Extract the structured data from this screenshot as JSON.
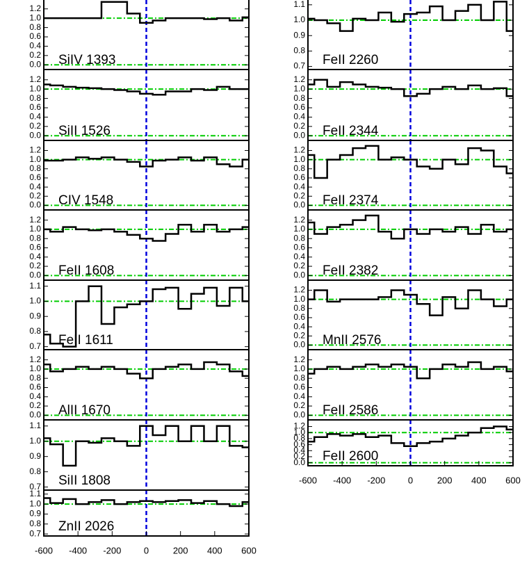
{
  "chart_data": [
    {
      "type": "step",
      "title": "SiIV 1393",
      "x": [
        -600,
        -525,
        -450,
        -375,
        -300,
        -225,
        -150,
        -75,
        0,
        75,
        150,
        225,
        300,
        375,
        450,
        525,
        600
      ],
      "values": [
        1.0,
        1.0,
        1.0,
        1.0,
        1.0,
        1.35,
        1.35,
        1.1,
        0.9,
        0.95,
        1.0,
        1.0,
        1.0,
        0.98,
        1.0,
        0.95,
        1.02
      ],
      "xlim": [
        -600,
        600
      ],
      "ylim": [
        -0.1,
        1.42
      ],
      "yticks": [
        {
          "value": 0,
          "label": "0.0"
        },
        {
          "value": 0.2,
          "label": "0.2"
        },
        {
          "value": 0.4,
          "label": "0.4"
        },
        {
          "value": 0.6,
          "label": "0.6"
        },
        {
          "value": 0.8,
          "label": "0.8"
        },
        {
          "value": 1,
          "label": "1.0"
        },
        {
          "value": 1.2,
          "label": "1.2"
        }
      ],
      "hlines": [
        0,
        1
      ],
      "vline": 0,
      "color": "#000000",
      "hline_color": "#00cc00",
      "vline_color": "#0000dd"
    },
    {
      "type": "step",
      "title": "SiII 1526",
      "x": [
        -600,
        -525,
        -450,
        -375,
        -300,
        -225,
        -150,
        -75,
        0,
        75,
        150,
        225,
        300,
        375,
        450,
        525,
        600
      ],
      "values": [
        1.1,
        1.08,
        1.05,
        1.03,
        1.02,
        1.0,
        0.98,
        0.95,
        0.9,
        0.88,
        0.95,
        0.95,
        1.0,
        0.98,
        1.05,
        1.0,
        1.0
      ],
      "xlim": [
        -600,
        600
      ],
      "ylim": [
        -0.1,
        1.42
      ],
      "yticks": [
        {
          "value": 0,
          "label": "0.0"
        },
        {
          "value": 0.2,
          "label": "0.2"
        },
        {
          "value": 0.4,
          "label": "0.4"
        },
        {
          "value": 0.6,
          "label": "0.6"
        },
        {
          "value": 0.8,
          "label": "0.8"
        },
        {
          "value": 1,
          "label": "1.0"
        },
        {
          "value": 1.2,
          "label": "1.2"
        }
      ],
      "hlines": [
        0,
        1
      ],
      "vline": 0,
      "color": "#000000",
      "hline_color": "#00cc00",
      "vline_color": "#0000dd"
    },
    {
      "type": "step",
      "title": "CIV 1548",
      "x": [
        -600,
        -525,
        -450,
        -375,
        -300,
        -225,
        -150,
        -75,
        0,
        75,
        150,
        225,
        300,
        375,
        450,
        525,
        600
      ],
      "values": [
        0.98,
        0.98,
        1.0,
        1.05,
        1.02,
        1.05,
        1.0,
        0.95,
        0.85,
        0.98,
        1.0,
        1.05,
        0.98,
        1.05,
        0.9,
        0.85,
        1.0
      ],
      "xlim": [
        -600,
        600
      ],
      "ylim": [
        -0.1,
        1.42
      ],
      "yticks": [
        {
          "value": 0,
          "label": "0.0"
        },
        {
          "value": 0.2,
          "label": "0.2"
        },
        {
          "value": 0.4,
          "label": "0.4"
        },
        {
          "value": 0.6,
          "label": "0.6"
        },
        {
          "value": 0.8,
          "label": "0.8"
        },
        {
          "value": 1,
          "label": "1.0"
        },
        {
          "value": 1.2,
          "label": "1.2"
        }
      ],
      "hlines": [
        0,
        1
      ],
      "vline": 0,
      "color": "#000000",
      "hline_color": "#00cc00",
      "vline_color": "#0000dd"
    },
    {
      "type": "step",
      "title": "FeII 1608",
      "x": [
        -600,
        -525,
        -450,
        -375,
        -300,
        -225,
        -150,
        -75,
        0,
        75,
        150,
        225,
        300,
        375,
        450,
        525,
        600
      ],
      "values": [
        1.0,
        0.95,
        1.05,
        1.0,
        0.98,
        1.0,
        0.95,
        0.88,
        0.8,
        0.75,
        0.9,
        1.1,
        0.95,
        1.1,
        0.95,
        1.0,
        1.05
      ],
      "xlim": [
        -600,
        600
      ],
      "ylim": [
        -0.1,
        1.42
      ],
      "yticks": [
        {
          "value": 0,
          "label": "0.0"
        },
        {
          "value": 0.2,
          "label": "0.2"
        },
        {
          "value": 0.4,
          "label": "0.4"
        },
        {
          "value": 0.6,
          "label": "0.6"
        },
        {
          "value": 0.8,
          "label": "0.8"
        },
        {
          "value": 1,
          "label": "1.0"
        },
        {
          "value": 1.2,
          "label": "1.2"
        }
      ],
      "hlines": [
        0,
        1
      ],
      "vline": 0,
      "color": "#000000",
      "hline_color": "#00cc00",
      "vline_color": "#0000dd"
    },
    {
      "type": "step",
      "title": "FeII 1611",
      "x": [
        -600,
        -525,
        -450,
        -375,
        -300,
        -225,
        -150,
        -75,
        0,
        75,
        150,
        225,
        300,
        375,
        450,
        525,
        600
      ],
      "values": [
        0.78,
        0.72,
        0.7,
        1.0,
        1.1,
        0.85,
        0.96,
        0.98,
        1.0,
        1.08,
        1.09,
        0.95,
        1.05,
        1.09,
        0.97,
        1.09,
        1.0
      ],
      "xlim": [
        -600,
        600
      ],
      "ylim": [
        0.68,
        1.14
      ],
      "yticks": [
        {
          "value": 0.7,
          "label": "0.7"
        },
        {
          "value": 0.8,
          "label": "0.8"
        },
        {
          "value": 0.9,
          "label": "0.9"
        },
        {
          "value": 1,
          "label": "1.0"
        },
        {
          "value": 1.1,
          "label": "1.1"
        }
      ],
      "hlines": [
        1
      ],
      "vline": 0,
      "color": "#000000",
      "hline_color": "#00cc00",
      "vline_color": "#0000dd"
    },
    {
      "type": "step",
      "title": "AlII 1670",
      "x": [
        -600,
        -525,
        -450,
        -375,
        -300,
        -225,
        -150,
        -75,
        0,
        75,
        150,
        225,
        300,
        375,
        450,
        525,
        600
      ],
      "values": [
        1.1,
        0.95,
        1.0,
        1.05,
        1.0,
        1.05,
        1.0,
        0.9,
        0.8,
        1.0,
        1.05,
        1.1,
        1.0,
        1.15,
        1.1,
        0.95,
        0.85
      ],
      "xlim": [
        -600,
        600
      ],
      "ylim": [
        -0.1,
        1.42
      ],
      "yticks": [
        {
          "value": 0,
          "label": "0.0"
        },
        {
          "value": 0.2,
          "label": "0.2"
        },
        {
          "value": 0.4,
          "label": "0.4"
        },
        {
          "value": 0.6,
          "label": "0.6"
        },
        {
          "value": 0.8,
          "label": "0.8"
        },
        {
          "value": 1,
          "label": "1.0"
        },
        {
          "value": 1.2,
          "label": "1.2"
        }
      ],
      "hlines": [
        0,
        1
      ],
      "vline": 0,
      "color": "#000000",
      "hline_color": "#00cc00",
      "vline_color": "#0000dd"
    },
    {
      "type": "step",
      "title": "SiII 1808",
      "x": [
        -600,
        -525,
        -450,
        -375,
        -300,
        -225,
        -150,
        -75,
        0,
        75,
        150,
        225,
        300,
        375,
        450,
        525,
        600
      ],
      "values": [
        1.02,
        0.98,
        0.84,
        1.0,
        0.99,
        1.02,
        1.0,
        0.97,
        1.1,
        1.04,
        1.1,
        1.0,
        1.1,
        1.0,
        1.1,
        0.97,
        0.96
      ],
      "xlim": [
        -600,
        600
      ],
      "ylim": [
        0.68,
        1.14
      ],
      "yticks": [
        {
          "value": 0.7,
          "label": "0.7"
        },
        {
          "value": 0.8,
          "label": "0.8"
        },
        {
          "value": 0.9,
          "label": "0.9"
        },
        {
          "value": 1,
          "label": "1.0"
        },
        {
          "value": 1.1,
          "label": "1.1"
        }
      ],
      "hlines": [
        1
      ],
      "vline": 0,
      "color": "#000000",
      "hline_color": "#00cc00",
      "vline_color": "#0000dd"
    },
    {
      "type": "step",
      "title": "ZnII 2026",
      "x": [
        -600,
        -525,
        -450,
        -375,
        -300,
        -225,
        -150,
        -75,
        0,
        75,
        150,
        225,
        300,
        375,
        450,
        525,
        600
      ],
      "values": [
        1.06,
        1.01,
        1.05,
        1.0,
        1.02,
        1.04,
        1.0,
        1.02,
        1.03,
        1.02,
        1.03,
        1.04,
        1.01,
        1.03,
        1.0,
        0.98,
        1.02
      ],
      "xlim": [
        -600,
        600
      ],
      "xticks": [
        -600,
        -400,
        -200,
        0,
        200,
        400,
        600
      ],
      "ylim": [
        0.68,
        1.14
      ],
      "yticks": [
        {
          "value": 0.7,
          "label": "0.7"
        },
        {
          "value": 0.8,
          "label": "0.8"
        },
        {
          "value": 0.9,
          "label": "0.9"
        },
        {
          "value": 1,
          "label": "1.0"
        },
        {
          "value": 1.1,
          "label": "1.1"
        }
      ],
      "hlines": [
        1
      ],
      "vline": 0,
      "color": "#000000",
      "hline_color": "#00cc00",
      "vline_color": "#0000dd"
    },
    {
      "type": "step",
      "title": "FeII 2260",
      "x": [
        -600,
        -525,
        -450,
        -375,
        -300,
        -225,
        -150,
        -75,
        0,
        75,
        150,
        225,
        300,
        375,
        450,
        525,
        600
      ],
      "values": [
        1.01,
        1.0,
        0.98,
        0.93,
        1.01,
        1.0,
        1.05,
        0.99,
        1.04,
        1.05,
        1.09,
        1.0,
        1.06,
        1.1,
        1.0,
        1.12,
        0.93
      ],
      "xlim": [
        -600,
        600
      ],
      "ylim": [
        0.68,
        1.14
      ],
      "yticks": [
        {
          "value": 0.7,
          "label": "0.7"
        },
        {
          "value": 0.8,
          "label": "0.8"
        },
        {
          "value": 0.9,
          "label": "0.9"
        },
        {
          "value": 1,
          "label": "1.0"
        },
        {
          "value": 1.1,
          "label": "1.1"
        }
      ],
      "hlines": [
        1
      ],
      "vline": 0,
      "color": "#000000",
      "hline_color": "#00cc00",
      "vline_color": "#0000dd"
    },
    {
      "type": "step",
      "title": "FeII 2344",
      "x": [
        -600,
        -525,
        -450,
        -375,
        -300,
        -225,
        -150,
        -75,
        0,
        75,
        150,
        225,
        300,
        375,
        450,
        525,
        600
      ],
      "values": [
        1.1,
        1.2,
        1.05,
        1.15,
        1.1,
        1.05,
        1.03,
        1.0,
        0.85,
        0.9,
        1.0,
        1.05,
        1.0,
        1.08,
        1.0,
        1.02,
        0.85
      ],
      "xlim": [
        -600,
        600
      ],
      "ylim": [
        -0.1,
        1.42
      ],
      "yticks": [
        {
          "value": 0,
          "label": "0.0"
        },
        {
          "value": 0.2,
          "label": "0.2"
        },
        {
          "value": 0.4,
          "label": "0.4"
        },
        {
          "value": 0.6,
          "label": "0.6"
        },
        {
          "value": 0.8,
          "label": "0.8"
        },
        {
          "value": 1,
          "label": "1.0"
        },
        {
          "value": 1.2,
          "label": "1.2"
        }
      ],
      "hlines": [
        0,
        1
      ],
      "vline": 0,
      "color": "#000000",
      "hline_color": "#00cc00",
      "vline_color": "#0000dd"
    },
    {
      "type": "step",
      "title": "FeII 2374",
      "x": [
        -600,
        -525,
        -450,
        -375,
        -300,
        -225,
        -150,
        -75,
        0,
        75,
        150,
        225,
        300,
        375,
        450,
        525,
        600
      ],
      "values": [
        1.1,
        0.6,
        1.0,
        1.1,
        1.25,
        1.3,
        1.0,
        1.05,
        1.0,
        0.85,
        0.8,
        1.0,
        0.9,
        1.25,
        1.2,
        0.85,
        0.7
      ],
      "xlim": [
        -600,
        600
      ],
      "ylim": [
        -0.1,
        1.42
      ],
      "yticks": [
        {
          "value": 0,
          "label": "0.0"
        },
        {
          "value": 0.2,
          "label": "0.2"
        },
        {
          "value": 0.4,
          "label": "0.4"
        },
        {
          "value": 0.6,
          "label": "0.6"
        },
        {
          "value": 0.8,
          "label": "0.8"
        },
        {
          "value": 1,
          "label": "1.0"
        },
        {
          "value": 1.2,
          "label": "1.2"
        }
      ],
      "hlines": [
        0,
        1
      ],
      "vline": 0,
      "color": "#000000",
      "hline_color": "#00cc00",
      "vline_color": "#0000dd"
    },
    {
      "type": "step",
      "title": "FeII 2382",
      "x": [
        -600,
        -525,
        -450,
        -375,
        -300,
        -225,
        -150,
        -75,
        0,
        75,
        150,
        225,
        300,
        375,
        450,
        525,
        600
      ],
      "values": [
        1.15,
        0.9,
        1.05,
        1.1,
        1.2,
        1.3,
        0.95,
        0.8,
        1.0,
        0.9,
        1.0,
        0.95,
        1.05,
        0.9,
        1.1,
        0.95,
        1.0
      ],
      "xlim": [
        -600,
        600
      ],
      "ylim": [
        -0.1,
        1.42
      ],
      "yticks": [
        {
          "value": 0,
          "label": "0.0"
        },
        {
          "value": 0.2,
          "label": "0.2"
        },
        {
          "value": 0.4,
          "label": "0.4"
        },
        {
          "value": 0.6,
          "label": "0.6"
        },
        {
          "value": 0.8,
          "label": "0.8"
        },
        {
          "value": 1,
          "label": "1.0"
        },
        {
          "value": 1.2,
          "label": "1.2"
        }
      ],
      "hlines": [
        0,
        1
      ],
      "vline": 0,
      "color": "#000000",
      "hline_color": "#00cc00",
      "vline_color": "#0000dd"
    },
    {
      "type": "step",
      "title": "MnII 2576",
      "x": [
        -600,
        -525,
        -450,
        -375,
        -300,
        -225,
        -150,
        -75,
        0,
        75,
        150,
        225,
        300,
        375,
        450,
        525,
        600
      ],
      "values": [
        1.0,
        1.2,
        0.95,
        1.0,
        1.0,
        1.0,
        1.05,
        1.2,
        1.1,
        0.9,
        0.65,
        1.05,
        0.8,
        1.2,
        1.0,
        0.85,
        1.0
      ],
      "xlim": [
        -600,
        600
      ],
      "ylim": [
        -0.1,
        1.42
      ],
      "yticks": [
        {
          "value": 0,
          "label": "0.0"
        },
        {
          "value": 0.2,
          "label": "0.2"
        },
        {
          "value": 0.4,
          "label": "0.4"
        },
        {
          "value": 0.6,
          "label": "0.6"
        },
        {
          "value": 0.8,
          "label": "0.8"
        },
        {
          "value": 1,
          "label": "1.0"
        },
        {
          "value": 1.2,
          "label": "1.2"
        }
      ],
      "hlines": [
        0,
        1
      ],
      "vline": 0,
      "color": "#000000",
      "hline_color": "#00cc00",
      "vline_color": "#0000dd"
    },
    {
      "type": "step",
      "title": "FeII 2586",
      "x": [
        -600,
        -525,
        -450,
        -375,
        -300,
        -225,
        -150,
        -75,
        0,
        75,
        150,
        225,
        300,
        375,
        450,
        525,
        600
      ],
      "values": [
        0.9,
        1.0,
        1.05,
        1.0,
        1.05,
        1.1,
        1.05,
        1.1,
        1.05,
        0.8,
        1.0,
        1.1,
        1.05,
        1.15,
        1.0,
        1.05,
        0.95
      ],
      "xlim": [
        -600,
        600
      ],
      "ylim": [
        -0.1,
        1.42
      ],
      "yticks": [
        {
          "value": 0,
          "label": "0.0"
        },
        {
          "value": 0.2,
          "label": "0.2"
        },
        {
          "value": 0.4,
          "label": "0.4"
        },
        {
          "value": 0.6,
          "label": "0.6"
        },
        {
          "value": 0.8,
          "label": "0.8"
        },
        {
          "value": 1,
          "label": "1.0"
        },
        {
          "value": 1.2,
          "label": "1.2"
        }
      ],
      "hlines": [
        0,
        1
      ],
      "vline": 0,
      "color": "#000000",
      "hline_color": "#00cc00",
      "vline_color": "#0000dd"
    },
    {
      "type": "step",
      "title": "FeII 2600",
      "x": [
        -600,
        -525,
        -450,
        -375,
        -300,
        -225,
        -150,
        -75,
        0,
        75,
        150,
        225,
        300,
        375,
        450,
        525,
        600
      ],
      "values": [
        0.7,
        0.85,
        0.95,
        0.9,
        0.95,
        0.85,
        0.9,
        0.65,
        0.55,
        0.65,
        0.7,
        0.8,
        0.9,
        1.0,
        1.15,
        1.2,
        1.1
      ],
      "xlim": [
        -600,
        600
      ],
      "xticks": [
        -600,
        -400,
        -200,
        0,
        200,
        400,
        600
      ],
      "ylim": [
        -0.1,
        1.42
      ],
      "yticks": [
        {
          "value": 0,
          "label": "0.0"
        },
        {
          "value": 0.2,
          "label": "0.2"
        },
        {
          "value": 0.4,
          "label": "0.4"
        },
        {
          "value": 0.6,
          "label": "0.6"
        },
        {
          "value": 0.8,
          "label": "0.8"
        },
        {
          "value": 1,
          "label": "1.0"
        },
        {
          "value": 1.2,
          "label": "1.2"
        }
      ],
      "hlines": [
        0,
        1
      ],
      "vline": 0,
      "color": "#000000",
      "hline_color": "#00cc00",
      "vline_color": "#0000dd"
    }
  ]
}
